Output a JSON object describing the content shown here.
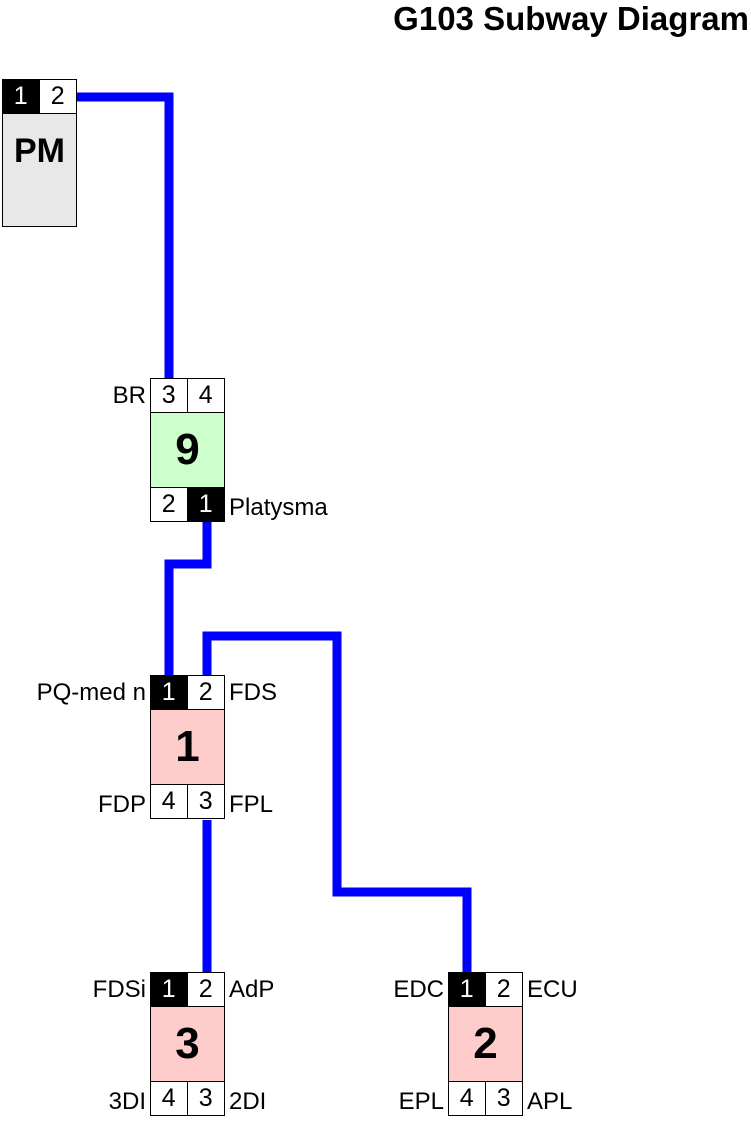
{
  "title": "G103 Subway Diagram",
  "colors": {
    "wire": "#0000ff",
    "hub_fill": "#e8e8e8",
    "green_fill": "#ccffcc",
    "pink_fill": "#ffcccc"
  },
  "nodes": {
    "pm": {
      "name": "PM",
      "top_ports": [
        "1",
        "2"
      ],
      "top_filled": [
        true,
        false
      ]
    },
    "n9": {
      "name": "9",
      "top_ports": [
        "3",
        "4"
      ],
      "bottom_ports": [
        "2",
        "1"
      ],
      "bottom_filled": [
        false,
        true
      ],
      "labels": {
        "top_left": "BR",
        "bottom_right": "Platysma"
      }
    },
    "n1": {
      "name": "1",
      "top_ports": [
        "1",
        "2"
      ],
      "top_filled": [
        true,
        false
      ],
      "bottom_ports": [
        "4",
        "3"
      ],
      "labels": {
        "top_left": "PQ-med n",
        "top_right": "FDS",
        "bottom_left": "FDP",
        "bottom_right": "FPL"
      }
    },
    "n3": {
      "name": "3",
      "top_ports": [
        "1",
        "2"
      ],
      "top_filled": [
        true,
        false
      ],
      "bottom_ports": [
        "4",
        "3"
      ],
      "labels": {
        "top_left": "FDSi",
        "top_right": "AdP",
        "bottom_left": "3DI",
        "bottom_right": "2DI"
      }
    },
    "n2": {
      "name": "2",
      "top_ports": [
        "1",
        "2"
      ],
      "top_filled": [
        true,
        false
      ],
      "bottom_ports": [
        "4",
        "3"
      ],
      "labels": {
        "top_left": "EDC",
        "top_right": "ECU",
        "bottom_left": "EPL",
        "bottom_right": "APL"
      }
    }
  }
}
